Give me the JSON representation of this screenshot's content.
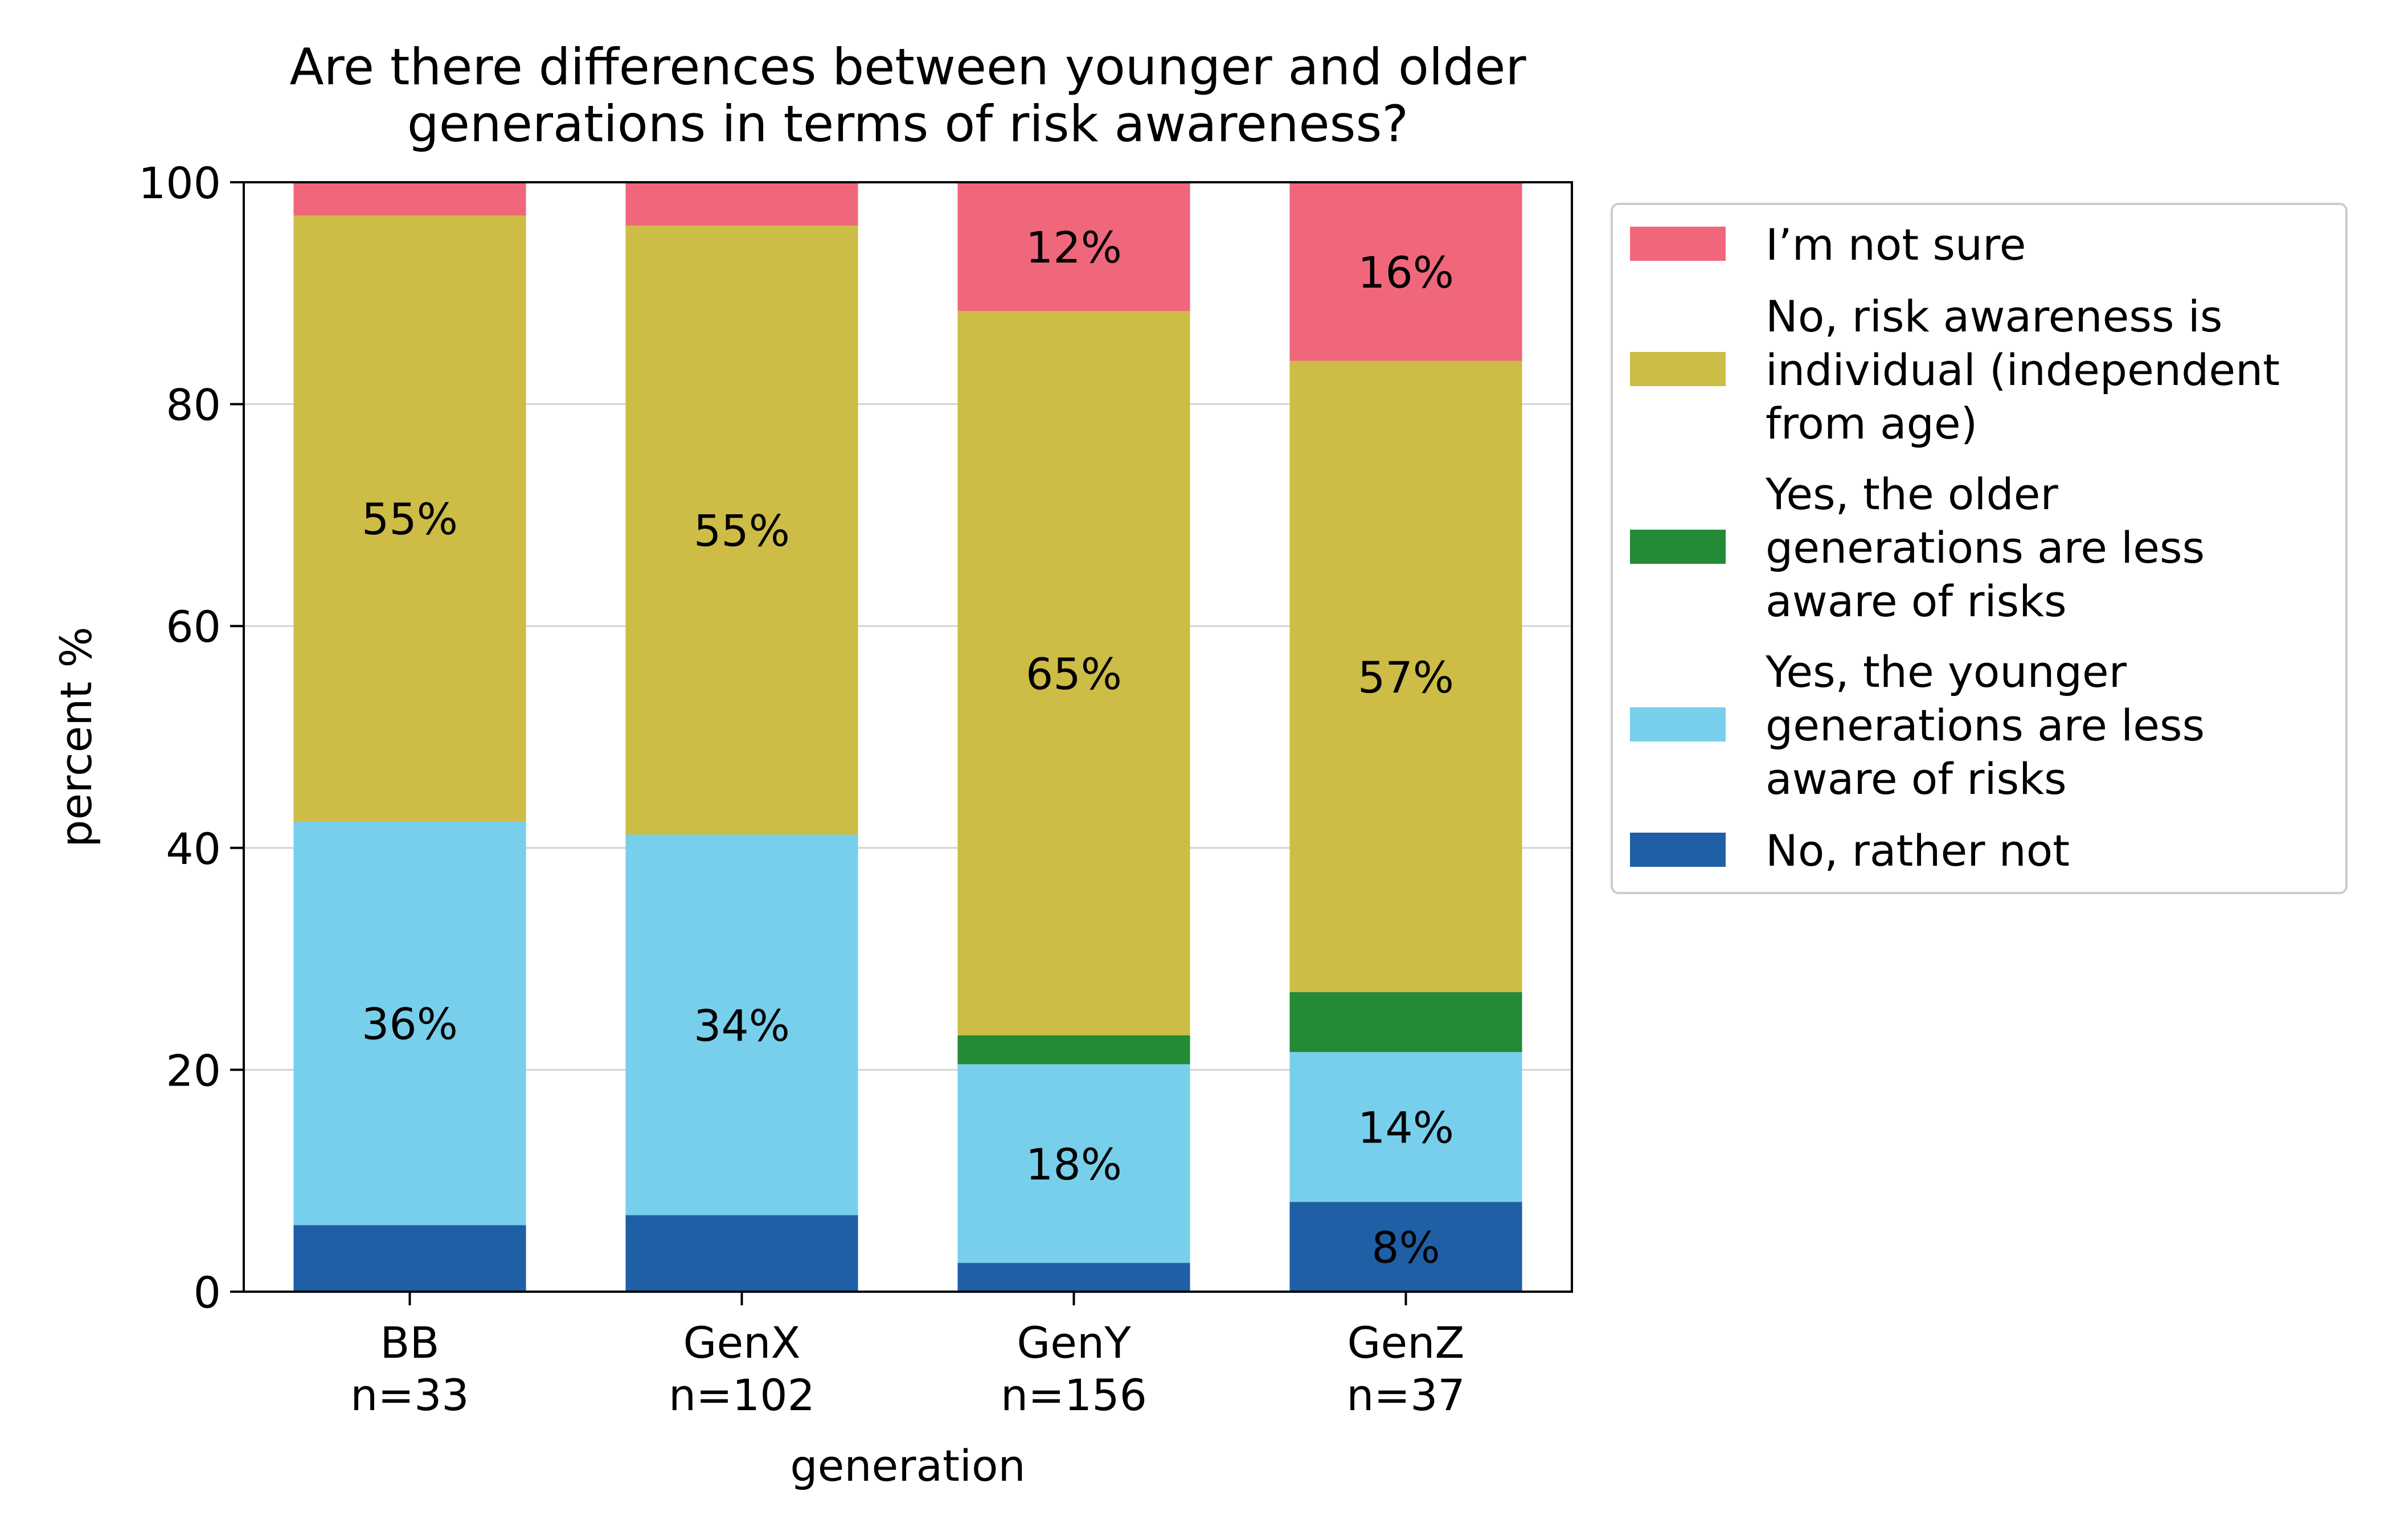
{
  "chart_data": {
    "type": "bar",
    "stacked": true,
    "title": "Are there differences between younger and older\ngenerations in terms of risk awareness?",
    "xlabel": "generation",
    "ylabel": "percent %",
    "ylim": [
      0,
      100
    ],
    "yticks": [
      0,
      20,
      40,
      60,
      80,
      100
    ],
    "grid": "horizontal",
    "legend_position": "right",
    "categories": [
      "BB\nn=33",
      "GenX\nn=102",
      "GenY\nn=156",
      "GenZ\nn=37"
    ],
    "series": [
      {
        "name": "No, rather not",
        "color": "#1f5fa6",
        "values": [
          6,
          6.9,
          2.6,
          8.1
        ],
        "labels": [
          "",
          "",
          "",
          "8%"
        ]
      },
      {
        "name": "Yes, the younger generations are less aware of risks",
        "color": "#78cfeb",
        "values": [
          36.4,
          34.3,
          17.9,
          13.5
        ],
        "labels": [
          "36%",
          "34%",
          "18%",
          "14%"
        ]
      },
      {
        "name": "Yes, the older generations are less aware of risks",
        "color": "#238a35",
        "values": [
          0,
          0,
          2.6,
          5.4
        ],
        "labels": [
          "",
          "",
          "",
          ""
        ]
      },
      {
        "name": "No, risk awareness is individual (independent from age)",
        "color": "#cdbc46",
        "values": [
          54.6,
          54.9,
          65.3,
          56.9
        ],
        "labels": [
          "55%",
          "55%",
          "65%",
          "57%"
        ]
      },
      {
        "name": "I’m not sure",
        "color": "#f0677b",
        "values": [
          3,
          3.9,
          11.6,
          16.1
        ],
        "labels": [
          "",
          "",
          "12%",
          "16%"
        ]
      }
    ],
    "legend_order": [
      4,
      3,
      2,
      1,
      0
    ],
    "legend_labels": [
      "I’m not sure",
      "No, risk awareness is\nindividual (independent\nfrom age)",
      "Yes, the older\ngenerations are less\naware of risks",
      "Yes, the younger\ngenerations are less\naware of risks",
      "No, rather not"
    ]
  }
}
